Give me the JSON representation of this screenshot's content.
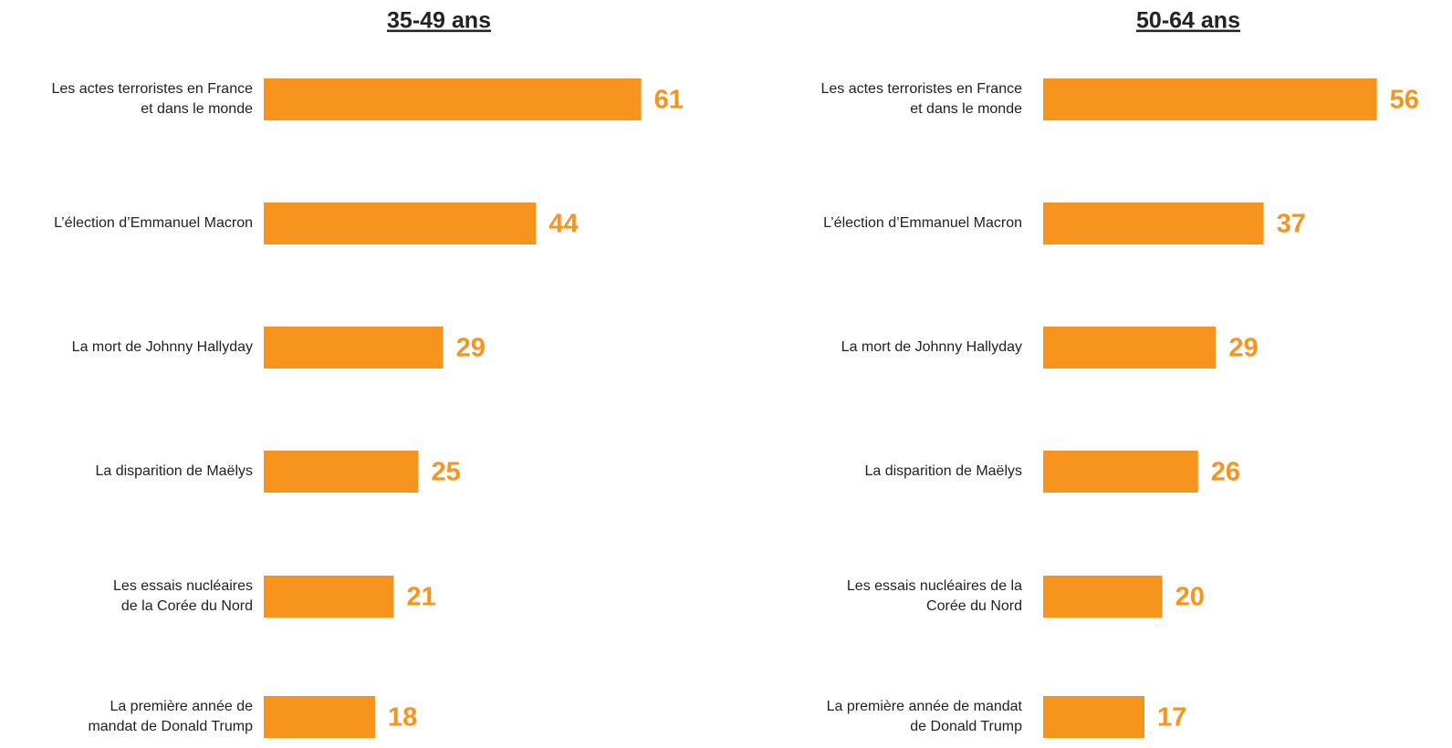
{
  "chart_data": [
    {
      "type": "bar",
      "orientation": "horizontal",
      "title": "35-49 ans",
      "color": "#f7941d",
      "categories": [
        "Les actes terroristes en France\net dans le monde",
        "L’élection d’Emmanuel Macron",
        "La mort de Johnny Hallyday",
        "La disparition de Maëlys",
        "Les essais nucléaires\nde la Corée du Nord",
        "La première année de\nmandat de Donald Trump"
      ],
      "values": [
        61,
        44,
        29,
        25,
        21,
        18
      ]
    },
    {
      "type": "bar",
      "orientation": "horizontal",
      "title": "50-64 ans",
      "color": "#f7941d",
      "categories": [
        "Les actes terroristes en France\net dans le monde",
        "L’élection d’Emmanuel Macron",
        "La mort de Johnny Hallyday",
        "La disparition de Maëlys",
        "Les essais nucléaires de la\nCorée du Nord",
        "La première année de mandat\nde Donald Trump"
      ],
      "values": [
        56,
        37,
        29,
        26,
        20,
        17
      ]
    }
  ]
}
